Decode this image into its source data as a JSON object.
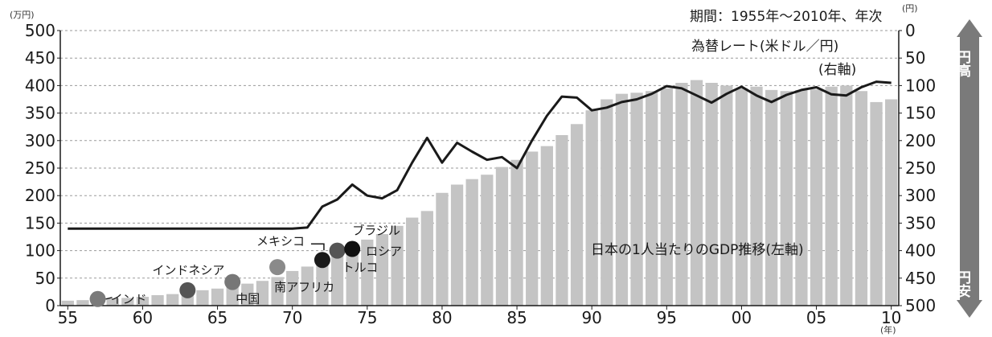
{
  "top_caption": "期間：1955年〜2010年、年次",
  "chart_data": {
    "type": "bar",
    "title": "",
    "xlabel": "(年)",
    "ylabel_left": "(万円)",
    "ylabel_right": "(円)",
    "ylim_left": [
      0,
      500
    ],
    "ylim_right_inverted": [
      0,
      500
    ],
    "grid": "horizontal dotted",
    "x_tick_labels": [
      "55",
      "60",
      "65",
      "70",
      "75",
      "80",
      "85",
      "90",
      "95",
      "00",
      "05",
      "10"
    ],
    "y_left_ticks": [
      0,
      50,
      100,
      150,
      200,
      250,
      300,
      350,
      400,
      450,
      500
    ],
    "y_right_ticks": [
      0,
      50,
      100,
      150,
      200,
      250,
      300,
      350,
      400,
      450,
      500
    ],
    "years": [
      1955,
      1956,
      1957,
      1958,
      1959,
      1960,
      1961,
      1962,
      1963,
      1964,
      1965,
      1966,
      1967,
      1968,
      1969,
      1970,
      1971,
      1972,
      1973,
      1974,
      1975,
      1976,
      1977,
      1978,
      1979,
      1980,
      1981,
      1982,
      1983,
      1984,
      1985,
      1986,
      1987,
      1988,
      1989,
      1990,
      1991,
      1992,
      1993,
      1994,
      1995,
      1996,
      1997,
      1998,
      1999,
      2000,
      2001,
      2002,
      2003,
      2004,
      2005,
      2006,
      2007,
      2008,
      2009,
      2010
    ],
    "gdp_per_capita_series": {
      "name": "日本の1人当たりのGDP推移(左軸)",
      "values": [
        9,
        10,
        12,
        13,
        14,
        16,
        19,
        21,
        24,
        28,
        31,
        35,
        40,
        45,
        52,
        63,
        71,
        80,
        98,
        110,
        120,
        130,
        145,
        160,
        172,
        205,
        220,
        230,
        238,
        252,
        265,
        280,
        290,
        310,
        330,
        355,
        375,
        385,
        387,
        390,
        395,
        405,
        410,
        405,
        400,
        395,
        398,
        392,
        390,
        392,
        393,
        398,
        400,
        390,
        370,
        375
      ]
    },
    "exchange_rate_series": {
      "name": "為替レート(米ドル／円)",
      "axis_note": "(右軸)",
      "values": [
        360,
        360,
        360,
        360,
        360,
        360,
        360,
        360,
        360,
        360,
        360,
        360,
        360,
        360,
        360,
        360,
        358,
        320,
        307,
        280,
        300,
        305,
        290,
        240,
        195,
        240,
        204,
        220,
        235,
        230,
        250,
        200,
        155,
        120,
        122,
        145,
        140,
        130,
        125,
        115,
        101,
        105,
        118,
        131,
        115,
        102,
        118,
        130,
        117,
        108,
        103,
        116,
        118,
        103,
        93,
        95
      ]
    },
    "reference_points": [
      {
        "label": "インド",
        "x": 1957,
        "y": 12,
        "color": "#7a7a7a"
      },
      {
        "label": "インドネシア",
        "x": 1963,
        "y": 28,
        "color": "#555555"
      },
      {
        "label": "中国",
        "x": 1966,
        "y": 43,
        "color": "#777777"
      },
      {
        "label": "南アフリカ",
        "x": 1969,
        "y": 70,
        "color": "#8a8a8a"
      },
      {
        "label": "メキシコ",
        "x": 1972,
        "y": 83,
        "color": "#1a1a1a"
      },
      {
        "label": "トルコ",
        "x": 1973,
        "y": 100,
        "color": "#555555"
      },
      {
        "label": "ロシア",
        "x": 1973.4,
        "y": 100,
        "color": "#555555"
      },
      {
        "label": "ブラジル",
        "x": 1974,
        "y": 103,
        "color": "#111111"
      }
    ],
    "side_arrow": {
      "top_label": "円高",
      "bottom_label": "円安"
    },
    "colors": {
      "bars": "#c4c4c4",
      "line": "#1a1a1a",
      "arrow": "#7a7a7a"
    }
  }
}
